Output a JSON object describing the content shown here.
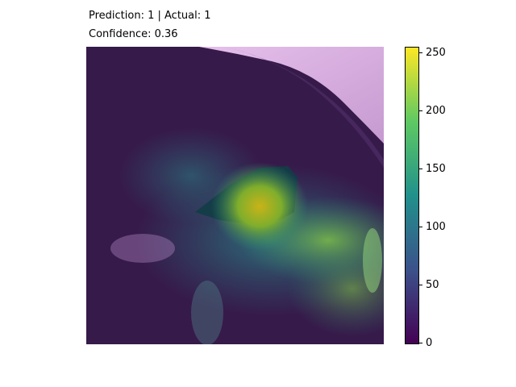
{
  "title_line1": "Prediction: 1 | Actual: 1",
  "title_line2": "Confidence: 0.36",
  "colorbar": {
    "colormap": "viridis",
    "range": [
      0,
      250
    ],
    "ticks": [
      "0",
      "50",
      "100",
      "150",
      "200",
      "250"
    ],
    "stops": [
      "#440154",
      "#3b528b",
      "#21918c",
      "#5ec962",
      "#fde725"
    ]
  },
  "heatmap": {
    "description_colors": {
      "background": "#3a1d4f",
      "tissue": "#e3b9e9",
      "hot": "#c7b316"
    }
  }
}
